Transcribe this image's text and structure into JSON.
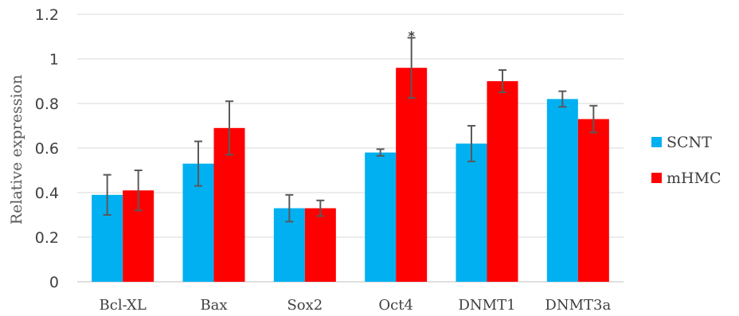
{
  "chart_data": {
    "type": "bar",
    "categories": [
      "Bcl-XL",
      "Bax",
      "Sox2",
      "Oct4",
      "DNMT1",
      "DNMT3a"
    ],
    "series": [
      {
        "name": "SCNT",
        "color": "#00B0F0",
        "values": [
          0.39,
          0.53,
          0.33,
          0.58,
          0.62,
          0.82
        ],
        "errors": [
          0.09,
          0.1,
          0.06,
          0.015,
          0.08,
          0.035
        ]
      },
      {
        "name": "mHMC",
        "color": "#FF0000",
        "values": [
          0.41,
          0.69,
          0.33,
          0.96,
          0.9,
          0.73
        ],
        "errors": [
          0.09,
          0.12,
          0.035,
          0.135,
          0.05,
          0.06
        ]
      }
    ],
    "title": "",
    "xlabel": "",
    "ylabel": "Relative expression",
    "ylim": [
      0,
      1.2
    ],
    "yticks": [
      "0",
      "0.2",
      "0.4",
      "0.6",
      "0.8",
      "1",
      "1.2"
    ],
    "grid": true,
    "legend_position": "right",
    "annotations": [
      {
        "category": "Oct4",
        "series": "mHMC",
        "text": "*"
      }
    ]
  }
}
